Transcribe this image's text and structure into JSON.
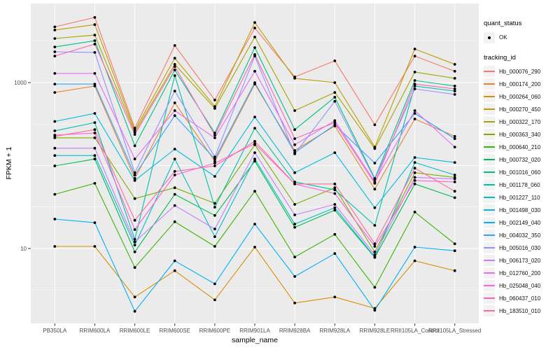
{
  "axes": {
    "x_title": "sample_name",
    "y_title": "FPKM + 1"
  },
  "legend": {
    "quant_title": "quant_status",
    "ok_label": "OK",
    "tracking_title": "tracking_id"
  },
  "chart_data": {
    "type": "line",
    "title": "",
    "xlabel": "sample_name",
    "ylabel": "FPKM + 1",
    "y_scale": "log10",
    "y_tick_labels": [
      1000,
      10
    ],
    "ylim": [
      1,
      7000
    ],
    "grid": "white major and minor gridlines on gray panel",
    "legend_position": "right",
    "panel_background": "#EBEBEB",
    "axis_text_color": "#4D4D4D",
    "point_marker": {
      "shape": "small black dot",
      "color": "#000000",
      "meaning": "quant_status = OK"
    },
    "x_categories": [
      "PB350LA",
      "RRIM600LA",
      "RRIM600LE",
      "RRIM600SE",
      "RRIM600PE",
      "RRIM901LA",
      "RRIM928BA",
      "RRIM928LA",
      "RRIM928LE",
      "RRII105LA_Control",
      "RRII105LA_Stressed"
    ],
    "series": [
      {
        "name": "Hb_000076_290",
        "color": "#F8766D",
        "values": [
          4700,
          6100,
          283,
          2800,
          616,
          4550,
          1170,
          1830,
          310,
          2090,
          1370
        ]
      },
      {
        "name": "Hb_000174_200",
        "color": "#EA8331",
        "values": [
          760,
          910,
          70,
          570,
          113,
          960,
          152,
          300,
          52,
          364,
          225
        ]
      },
      {
        "name": "Hb_000264_060",
        "color": "#D89000",
        "values": [
          10.6,
          10.6,
          2.6,
          5.4,
          2.4,
          10.4,
          2.2,
          2.6,
          1.9,
          7.1,
          5.4
        ]
      },
      {
        "name": "Hb_000270_450",
        "color": "#C09B00",
        "values": [
          4300,
          5000,
          266,
          1970,
          516,
          5300,
          1125,
          1000,
          167,
          2540,
          1660
        ]
      },
      {
        "name": "Hb_000322_170",
        "color": "#A3A500",
        "values": [
          3400,
          3740,
          251,
          1660,
          488,
          3540,
          460,
          760,
          160,
          1340,
          1125
        ]
      },
      {
        "name": "Hb_000363_340",
        "color": "#7CAE00",
        "values": [
          216,
          216,
          40,
          54,
          35,
          178,
          34,
          54,
          9.1,
          82,
          72
        ]
      },
      {
        "name": "Hb_000640_210",
        "color": "#39B600",
        "values": [
          45,
          61,
          5.9,
          21,
          10.6,
          49,
          7.9,
          14.8,
          3.4,
          27.5,
          11.4
        ]
      },
      {
        "name": "Hb_000732_020",
        "color": "#00BB4E",
        "values": [
          99,
          120,
          9.1,
          45,
          25,
          113,
          18,
          29,
          7.8,
          60,
          41
        ]
      },
      {
        "name": "Hb_001016_060",
        "color": "#00BF7D",
        "values": [
          2690,
          3200,
          173,
          1420,
          247,
          2640,
          271,
          666,
          70,
          1060,
          910
        ]
      },
      {
        "name": "Hb_001178_060",
        "color": "#00C1A3",
        "values": [
          262,
          330,
          12.9,
          1215,
          31.5,
          282,
          63.5,
          51,
          19,
          910,
          790
        ]
      },
      {
        "name": "Hb_001227_110",
        "color": "#00BFC4",
        "values": [
          132,
          132,
          11,
          120,
          13.9,
          120,
          19.7,
          31,
          7.9,
          109,
          77
        ]
      },
      {
        "name": "Hb_001498_030",
        "color": "#00BAE0",
        "values": [
          340,
          425,
          66,
          158,
          74,
          385,
          82,
          143,
          31,
          125,
          109
        ]
      },
      {
        "name": "Hb_002149_040",
        "color": "#00B0F6",
        "values": [
          22.6,
          20.5,
          1.75,
          7.1,
          3.75,
          19.7,
          4.6,
          8.7,
          1.8,
          10.4,
          9.4
        ]
      },
      {
        "name": "Hb_004032_350",
        "color": "#35A2FF",
        "values": [
          960,
          960,
          77,
          400,
          120,
          1000,
          143,
          310,
          107,
          425,
          211
        ]
      },
      {
        "name": "Hb_005016_030",
        "color": "#9590FF",
        "values": [
          2350,
          2310,
          82,
          790,
          127,
          2090,
          138,
          595,
          68,
          840,
          720
        ]
      },
      {
        "name": "Hb_006173_020",
        "color": "#C77CFF",
        "values": [
          162,
          162,
          12,
          33,
          17.2,
          143,
          25.4,
          34,
          8.4,
          72,
          69
        ]
      },
      {
        "name": "Hb_012760_200",
        "color": "#E76BF3",
        "values": [
          1290,
          1290,
          120,
          460,
          216,
          1370,
          178,
          348,
          63.5,
          460,
          167
        ]
      },
      {
        "name": "Hb_025048_040",
        "color": "#FA62DB",
        "values": [
          233,
          247,
          16.9,
          77,
          107,
          183,
          60,
          46,
          10.6,
          66,
          63.5
        ]
      },
      {
        "name": "Hb_060437_010",
        "color": "#FF62BC",
        "values": [
          2090,
          2910,
          237,
          1560,
          233,
          2180,
          211,
          330,
          61,
          960,
          840
        ]
      },
      {
        "name": "Hb_183510_010",
        "color": "#FF6A98",
        "values": [
          225,
          271,
          21.9,
          85,
          99,
          196,
          60,
          60,
          11.4,
          93,
          49
        ]
      }
    ]
  }
}
